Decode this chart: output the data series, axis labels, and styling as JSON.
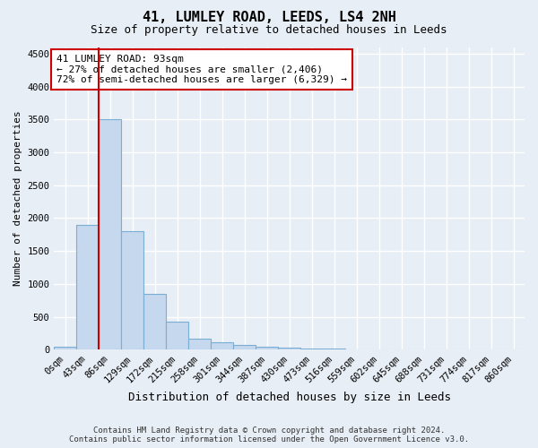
{
  "title": "41, LUMLEY ROAD, LEEDS, LS4 2NH",
  "subtitle": "Size of property relative to detached houses in Leeds",
  "xlabel": "Distribution of detached houses by size in Leeds",
  "ylabel": "Number of detached properties",
  "bar_color": "#c5d8ee",
  "bar_edge_color": "#7aaed4",
  "categories": [
    "0sqm",
    "43sqm",
    "86sqm",
    "129sqm",
    "172sqm",
    "215sqm",
    "258sqm",
    "301sqm",
    "344sqm",
    "387sqm",
    "430sqm",
    "473sqm",
    "516sqm",
    "559sqm",
    "602sqm",
    "645sqm",
    "688sqm",
    "731sqm",
    "774sqm",
    "817sqm",
    "860sqm"
  ],
  "values": [
    50,
    1900,
    3500,
    1800,
    850,
    430,
    170,
    110,
    75,
    50,
    30,
    15,
    10,
    8,
    5,
    4,
    3,
    2,
    1,
    1,
    1
  ],
  "ylim": [
    0,
    4600
  ],
  "yticks": [
    0,
    500,
    1000,
    1500,
    2000,
    2500,
    3000,
    3500,
    4000,
    4500
  ],
  "annotation_line1": "41 LUMLEY ROAD: 93sqm",
  "annotation_line2": "← 27% of detached houses are smaller (2,406)",
  "annotation_line3": "72% of semi-detached houses are larger (6,329) →",
  "vline_color": "#cc0000",
  "footer_line1": "Contains HM Land Registry data © Crown copyright and database right 2024.",
  "footer_line2": "Contains public sector information licensed under the Open Government Licence v3.0.",
  "background_color": "#e8eef5",
  "grid_color": "#ffffff",
  "annotation_box_facecolor": "#ffffff",
  "annotation_box_edgecolor": "#cc0000",
  "title_fontsize": 11,
  "subtitle_fontsize": 9,
  "tick_fontsize": 7.5,
  "ylabel_fontsize": 8,
  "xlabel_fontsize": 9
}
